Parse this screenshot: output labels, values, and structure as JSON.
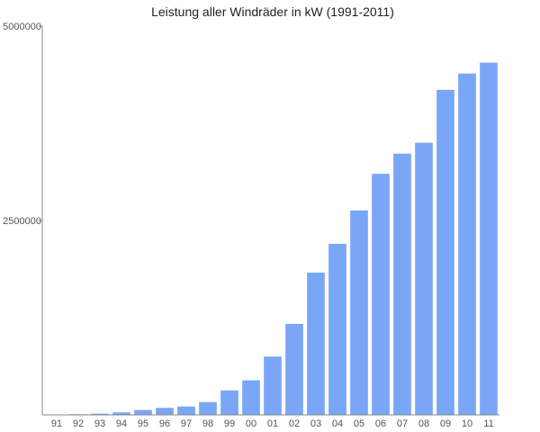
{
  "chart_data": {
    "type": "bar",
    "title": "Leistung aller Windräder in kW (1991-2011)",
    "xlabel": "",
    "ylabel": "",
    "categories": [
      "91",
      "92",
      "93",
      "94",
      "95",
      "96",
      "97",
      "98",
      "99",
      "00",
      "01",
      "02",
      "03",
      "04",
      "05",
      "06",
      "07",
      "08",
      "09",
      "10",
      "11"
    ],
    "values": [
      4000,
      9000,
      16000,
      32000,
      63000,
      90000,
      108000,
      165000,
      315000,
      445000,
      750000,
      1170000,
      1830000,
      2200000,
      2630000,
      3100000,
      3360000,
      3500000,
      4180000,
      4390000,
      4530000
    ],
    "ylim": [
      0,
      5000000
    ],
    "yticks": [
      "2500000",
      "5000000"
    ],
    "bar_color": "#7aa6f7",
    "grid": false,
    "legend": "none"
  }
}
